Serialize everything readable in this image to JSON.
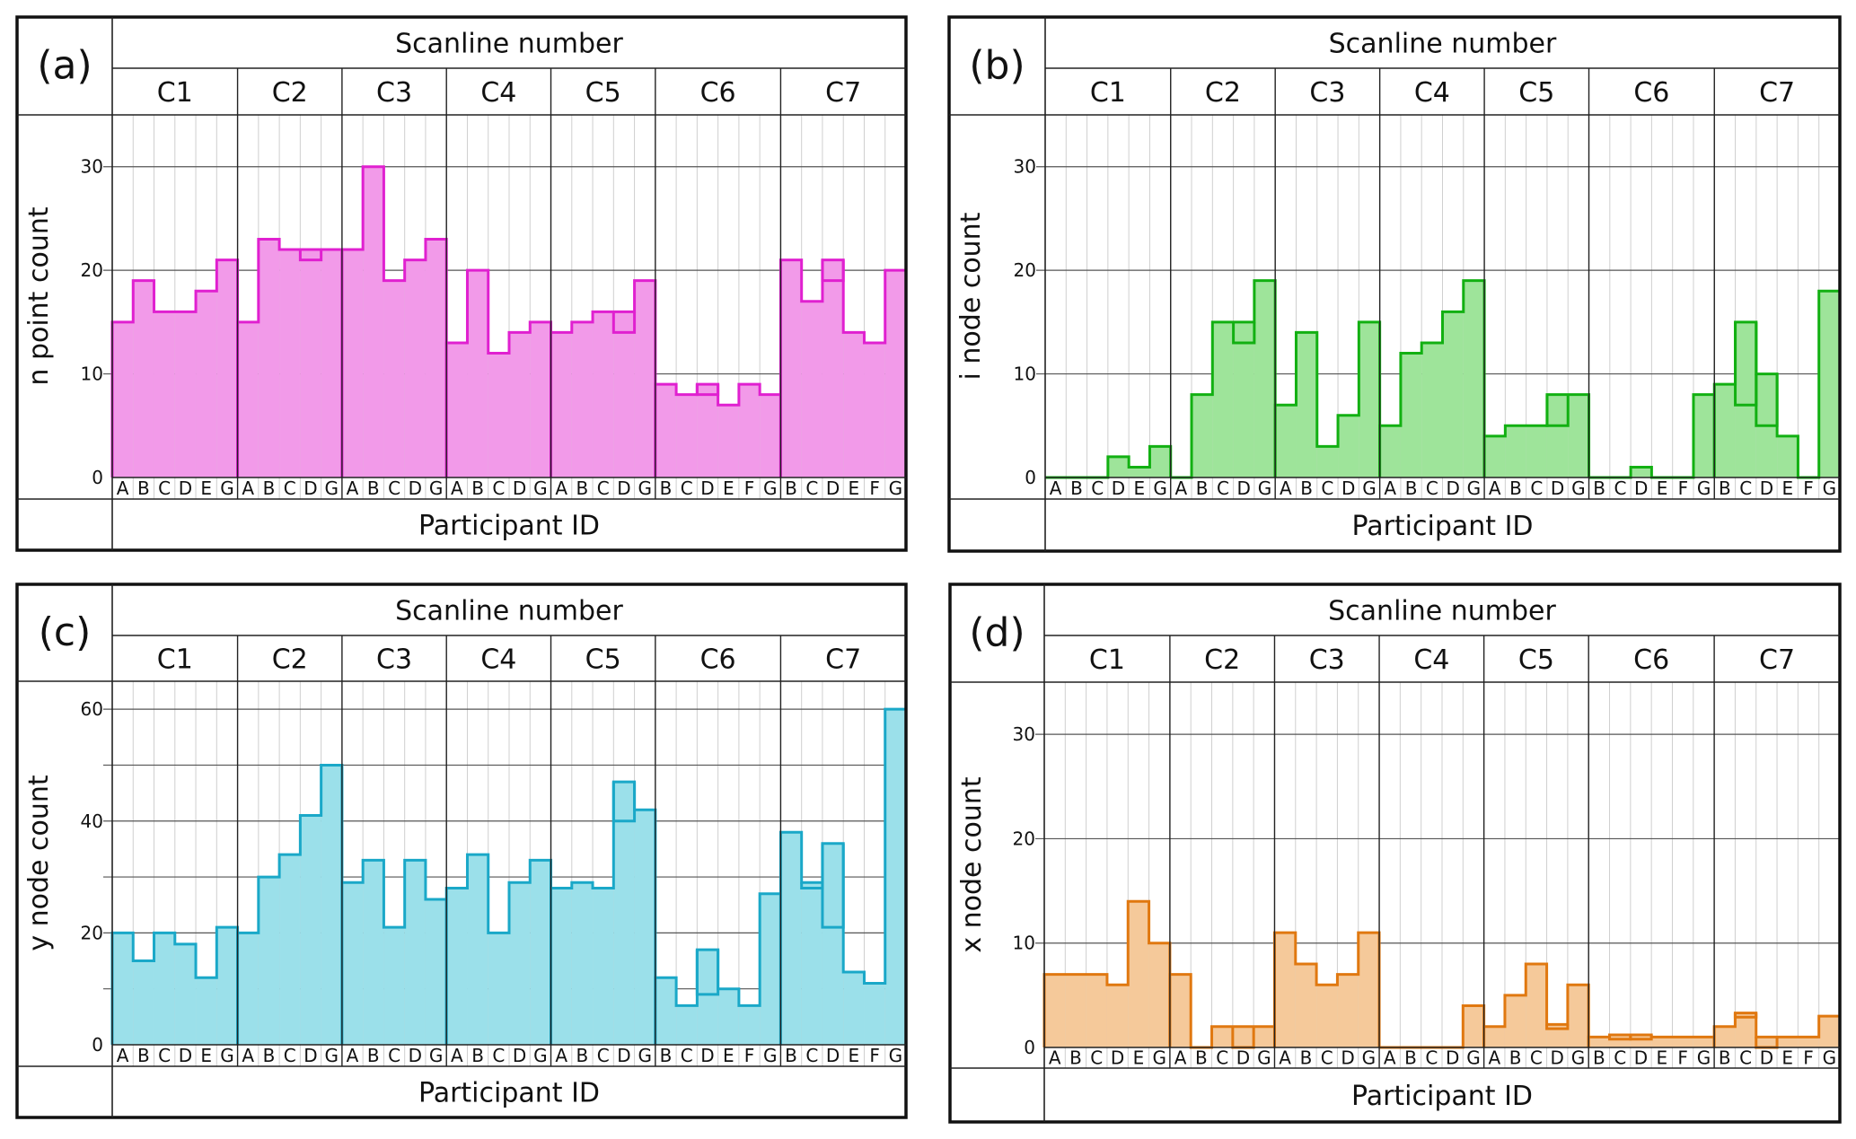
{
  "figure": {
    "top_header": "Scanline number",
    "bottom_header": "Participant ID"
  },
  "chart_data": [
    {
      "id": "a",
      "type": "bar",
      "panel_label": "(a)",
      "title": "Scanline number",
      "xlabel": "Participant ID",
      "ylabel": "n point count",
      "ylim": [
        0,
        35
      ],
      "yticks": [
        0,
        10,
        20,
        30
      ],
      "grid": true,
      "color": {
        "line": "#e020d0",
        "fill": "#f29ae9"
      },
      "groups": [
        {
          "name": "C1",
          "participants": [
            "A",
            "B",
            "C",
            "D",
            "E",
            "G"
          ],
          "values": [
            15,
            19,
            16,
            16,
            18,
            21
          ],
          "overlay": [
            null,
            null,
            null,
            null,
            null,
            null
          ]
        },
        {
          "name": "C2",
          "participants": [
            "A",
            "B",
            "C",
            "D",
            "G"
          ],
          "values": [
            15,
            23,
            22,
            22,
            22
          ],
          "overlay": [
            null,
            null,
            null,
            21,
            null
          ]
        },
        {
          "name": "C3",
          "participants": [
            "A",
            "B",
            "C",
            "D",
            "G"
          ],
          "values": [
            22,
            30,
            19,
            21,
            23
          ],
          "overlay": [
            null,
            null,
            null,
            null,
            null
          ]
        },
        {
          "name": "C4",
          "participants": [
            "A",
            "B",
            "C",
            "D",
            "G"
          ],
          "values": [
            13,
            20,
            12,
            14,
            15
          ],
          "overlay": [
            null,
            null,
            null,
            null,
            null
          ]
        },
        {
          "name": "C5",
          "participants": [
            "A",
            "B",
            "C",
            "D",
            "G"
          ],
          "values": [
            14,
            15,
            16,
            16,
            19
          ],
          "overlay": [
            null,
            null,
            null,
            14,
            null
          ]
        },
        {
          "name": "C6",
          "participants": [
            "B",
            "C",
            "D",
            "E",
            "F",
            "G"
          ],
          "values": [
            9,
            8,
            9,
            7,
            9,
            8
          ],
          "overlay": [
            null,
            null,
            8,
            null,
            null,
            null
          ]
        },
        {
          "name": "C7",
          "participants": [
            "B",
            "C",
            "D",
            "E",
            "F",
            "G"
          ],
          "values": [
            21,
            17,
            21,
            14,
            13,
            20
          ],
          "overlay": [
            null,
            null,
            19,
            null,
            null,
            null
          ]
        }
      ]
    },
    {
      "id": "b",
      "type": "bar",
      "panel_label": "(b)",
      "title": "Scanline number",
      "xlabel": "Participant ID",
      "ylabel": "i node count",
      "ylim": [
        0,
        35
      ],
      "yticks": [
        0,
        10,
        20,
        30
      ],
      "grid": true,
      "color": {
        "line": "#12b012",
        "fill": "#9ee49a"
      },
      "groups": [
        {
          "name": "C1",
          "participants": [
            "A",
            "B",
            "C",
            "D",
            "E",
            "G"
          ],
          "values": [
            0,
            0,
            0,
            2,
            1,
            3
          ],
          "overlay": [
            null,
            null,
            null,
            null,
            null,
            null
          ]
        },
        {
          "name": "C2",
          "participants": [
            "A",
            "B",
            "C",
            "D",
            "G"
          ],
          "values": [
            0,
            8,
            15,
            15,
            19
          ],
          "overlay": [
            null,
            null,
            null,
            13,
            null
          ]
        },
        {
          "name": "C3",
          "participants": [
            "A",
            "B",
            "C",
            "D",
            "G"
          ],
          "values": [
            7,
            14,
            3,
            6,
            15
          ],
          "overlay": [
            null,
            null,
            null,
            null,
            null
          ]
        },
        {
          "name": "C4",
          "participants": [
            "A",
            "B",
            "C",
            "D",
            "G"
          ],
          "values": [
            5,
            12,
            13,
            16,
            19
          ],
          "overlay": [
            null,
            null,
            null,
            null,
            null
          ]
        },
        {
          "name": "C5",
          "participants": [
            "A",
            "B",
            "C",
            "D",
            "G"
          ],
          "values": [
            4,
            5,
            5,
            8,
            8
          ],
          "overlay": [
            null,
            null,
            null,
            5,
            null
          ]
        },
        {
          "name": "C6",
          "participants": [
            "B",
            "C",
            "D",
            "E",
            "F",
            "G"
          ],
          "values": [
            0,
            0,
            1,
            0,
            0,
            8
          ],
          "overlay": [
            null,
            null,
            null,
            null,
            null,
            null
          ]
        },
        {
          "name": "C7",
          "participants": [
            "B",
            "C",
            "D",
            "E",
            "F",
            "G"
          ],
          "values": [
            9,
            15,
            10,
            4,
            0,
            18
          ],
          "overlay": [
            null,
            7,
            5,
            null,
            null,
            null
          ]
        }
      ]
    },
    {
      "id": "c",
      "type": "bar",
      "panel_label": "(c)",
      "title": "Scanline number",
      "xlabel": "Participant ID",
      "ylabel": "y node count",
      "ylim": [
        0,
        65
      ],
      "yticks": [
        0,
        20,
        40,
        60
      ],
      "yminor_grid": [
        10,
        30,
        50
      ],
      "grid": true,
      "color": {
        "line": "#1aa8c8",
        "fill": "#9be0ea"
      },
      "groups": [
        {
          "name": "C1",
          "participants": [
            "A",
            "B",
            "C",
            "D",
            "E",
            "G"
          ],
          "values": [
            20,
            15,
            20,
            18,
            12,
            21
          ],
          "overlay": [
            null,
            null,
            null,
            null,
            null,
            null
          ]
        },
        {
          "name": "C2",
          "participants": [
            "A",
            "B",
            "C",
            "D",
            "G"
          ],
          "values": [
            20,
            30,
            34,
            41,
            50
          ],
          "overlay": [
            null,
            null,
            null,
            null,
            null
          ]
        },
        {
          "name": "C3",
          "participants": [
            "A",
            "B",
            "C",
            "D",
            "G"
          ],
          "values": [
            29,
            33,
            21,
            33,
            26
          ],
          "overlay": [
            null,
            null,
            null,
            null,
            null
          ]
        },
        {
          "name": "C4",
          "participants": [
            "A",
            "B",
            "C",
            "D",
            "G"
          ],
          "values": [
            28,
            34,
            20,
            29,
            33
          ],
          "overlay": [
            null,
            null,
            null,
            null,
            null
          ]
        },
        {
          "name": "C5",
          "participants": [
            "A",
            "B",
            "C",
            "D",
            "G"
          ],
          "values": [
            28,
            29,
            28,
            47,
            42
          ],
          "overlay": [
            null,
            null,
            null,
            40,
            null
          ]
        },
        {
          "name": "C6",
          "participants": [
            "B",
            "C",
            "D",
            "E",
            "F",
            "G"
          ],
          "values": [
            12,
            7,
            17,
            10,
            7,
            27
          ],
          "overlay": [
            null,
            null,
            9,
            null,
            null,
            null
          ]
        },
        {
          "name": "C7",
          "participants": [
            "B",
            "C",
            "D",
            "E",
            "F",
            "G"
          ],
          "values": [
            38,
            29,
            36,
            13,
            11,
            60
          ],
          "overlay": [
            null,
            28,
            21,
            null,
            null,
            null
          ]
        }
      ]
    },
    {
      "id": "d",
      "type": "bar",
      "panel_label": "(d)",
      "title": "Scanline number",
      "xlabel": "Participant ID",
      "ylabel": "x node count",
      "ylim": [
        0,
        35
      ],
      "yticks": [
        0,
        10,
        20,
        30
      ],
      "grid": true,
      "color": {
        "line": "#e07810",
        "fill": "#f5c99a"
      },
      "groups": [
        {
          "name": "C1",
          "participants": [
            "A",
            "B",
            "C",
            "D",
            "E",
            "G"
          ],
          "values": [
            7,
            7,
            7,
            6,
            14,
            10
          ],
          "overlay": [
            null,
            null,
            null,
            null,
            null,
            null
          ]
        },
        {
          "name": "C2",
          "participants": [
            "A",
            "B",
            "C",
            "D",
            "G"
          ],
          "values": [
            7,
            0,
            2,
            2,
            2
          ],
          "overlay": [
            null,
            null,
            null,
            0,
            null
          ]
        },
        {
          "name": "C3",
          "participants": [
            "A",
            "B",
            "C",
            "D",
            "G"
          ],
          "values": [
            11,
            8,
            6,
            7,
            11
          ],
          "overlay": [
            null,
            null,
            null,
            null,
            null
          ]
        },
        {
          "name": "C4",
          "participants": [
            "A",
            "B",
            "C",
            "D",
            "G"
          ],
          "values": [
            0,
            0,
            0,
            0,
            4
          ],
          "overlay": [
            null,
            null,
            null,
            null,
            null
          ]
        },
        {
          "name": "C5",
          "participants": [
            "A",
            "B",
            "C",
            "D",
            "G"
          ],
          "values": [
            2,
            5,
            8,
            2.2,
            6
          ],
          "overlay": [
            null,
            null,
            null,
            1.8,
            null
          ]
        },
        {
          "name": "C6",
          "participants": [
            "B",
            "C",
            "D",
            "E",
            "F",
            "G"
          ],
          "values": [
            1,
            1.2,
            1.2,
            1,
            1,
            1
          ],
          "overlay": [
            null,
            0.8,
            0.8,
            null,
            null,
            null
          ]
        },
        {
          "name": "C7",
          "participants": [
            "B",
            "C",
            "D",
            "E",
            "F",
            "G"
          ],
          "values": [
            2,
            3.3,
            1,
            1,
            1,
            3
          ],
          "overlay": [
            null,
            2.9,
            0,
            null,
            null,
            null
          ]
        }
      ]
    }
  ]
}
